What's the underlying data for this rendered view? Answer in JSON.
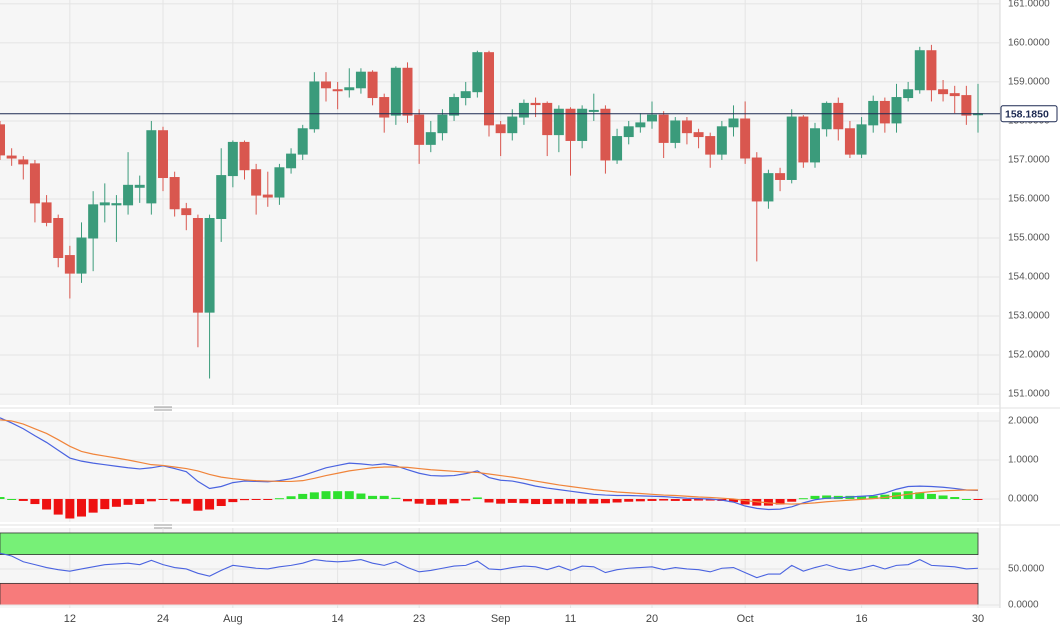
{
  "chart_data": [
    {
      "type": "candlestick",
      "categories": [
        null,
        null,
        null,
        null,
        null,
        null,
        "12",
        null,
        null,
        null,
        null,
        null,
        null,
        null,
        "24",
        null,
        null,
        null,
        null,
        null,
        "Aug",
        null,
        null,
        null,
        null,
        null,
        null,
        null,
        null,
        "14",
        null,
        null,
        null,
        null,
        null,
        null,
        "23",
        null,
        null,
        null,
        null,
        null,
        null,
        "Sep",
        null,
        null,
        null,
        null,
        null,
        "11",
        null,
        null,
        null,
        null,
        null,
        null,
        "20",
        null,
        null,
        null,
        null,
        null,
        null,
        null,
        "Oct",
        null,
        null,
        null,
        null,
        null,
        null,
        null,
        null,
        null,
        "16",
        null,
        null,
        null,
        null,
        null,
        null,
        null,
        null,
        null,
        "30"
      ],
      "open": [
        157.9,
        157.1,
        157.0,
        156.9,
        155.9,
        155.5,
        154.55,
        154.1,
        155.0,
        155.85,
        155.85,
        155.85,
        156.3,
        155.9,
        157.75,
        156.55,
        155.75,
        155.5,
        153.1,
        155.5,
        156.6,
        157.45,
        156.75,
        156.1,
        156.05,
        156.8,
        157.15,
        157.8,
        159.0,
        158.8,
        158.8,
        158.85,
        159.25,
        158.6,
        158.15,
        159.35,
        158.15,
        157.4,
        157.7,
        158.15,
        158.6,
        158.75,
        159.75,
        157.9,
        157.7,
        158.1,
        158.45,
        158.45,
        157.65,
        158.3,
        157.5,
        158.25,
        158.3,
        157.0,
        157.6,
        157.85,
        158.0,
        158.15,
        157.45,
        158.0,
        157.7,
        157.6,
        157.15,
        157.85,
        158.05,
        157.05,
        155.95,
        156.65,
        156.5,
        158.1,
        156.95,
        157.8,
        158.45,
        157.8,
        157.15,
        157.9,
        158.5,
        157.95,
        158.6,
        158.8,
        159.8,
        158.8,
        158.7,
        158.65,
        158.17
      ],
      "high": [
        158.0,
        157.3,
        157.1,
        157.0,
        156.1,
        155.6,
        154.8,
        155.4,
        156.2,
        156.4,
        156.1,
        157.2,
        156.6,
        158.0,
        157.85,
        156.7,
        155.9,
        155.6,
        155.6,
        157.3,
        157.5,
        157.5,
        156.9,
        156.7,
        156.9,
        157.3,
        157.9,
        159.25,
        159.25,
        159.0,
        159.35,
        159.35,
        159.3,
        158.7,
        159.4,
        159.5,
        158.3,
        158.0,
        158.3,
        158.7,
        159.0,
        159.8,
        159.8,
        158.0,
        158.3,
        158.55,
        158.6,
        158.5,
        158.4,
        158.35,
        158.4,
        158.7,
        158.4,
        157.8,
        158.0,
        158.2,
        158.5,
        158.25,
        158.1,
        158.1,
        157.8,
        157.7,
        158.0,
        158.4,
        158.5,
        157.2,
        156.75,
        156.8,
        158.3,
        158.15,
        157.95,
        158.5,
        158.6,
        158.0,
        158.1,
        158.65,
        158.6,
        158.95,
        159.0,
        159.9,
        159.95,
        159.05,
        158.9,
        158.9,
        158.95
      ],
      "low": [
        157.0,
        156.85,
        156.5,
        155.4,
        155.3,
        154.25,
        153.45,
        153.85,
        154.15,
        155.4,
        154.9,
        155.6,
        155.9,
        155.6,
        156.2,
        155.55,
        155.2,
        152.2,
        151.4,
        154.9,
        156.3,
        156.5,
        155.6,
        155.8,
        155.85,
        156.65,
        157.0,
        157.7,
        158.5,
        158.3,
        158.6,
        158.7,
        158.4,
        157.7,
        157.9,
        157.95,
        156.9,
        157.2,
        157.5,
        158.0,
        158.4,
        158.6,
        157.6,
        157.1,
        157.5,
        157.9,
        158.1,
        157.1,
        157.2,
        156.6,
        157.3,
        158.0,
        156.65,
        156.9,
        157.4,
        157.7,
        157.8,
        157.05,
        157.3,
        157.4,
        157.3,
        156.8,
        157.0,
        157.6,
        156.9,
        154.4,
        155.75,
        156.2,
        156.4,
        156.8,
        156.8,
        157.6,
        157.5,
        157.05,
        157.05,
        157.7,
        157.7,
        157.7,
        158.5,
        158.7,
        158.5,
        158.5,
        158.2,
        157.9,
        157.7
      ],
      "close": [
        157.13,
        157.05,
        156.9,
        155.9,
        155.4,
        154.5,
        154.1,
        155.0,
        155.85,
        155.9,
        155.88,
        156.35,
        156.35,
        157.75,
        156.55,
        155.75,
        155.6,
        153.1,
        155.5,
        156.6,
        157.45,
        156.75,
        156.1,
        156.05,
        156.8,
        157.15,
        157.8,
        159.0,
        158.85,
        158.78,
        158.85,
        159.25,
        158.6,
        158.1,
        159.35,
        158.15,
        157.4,
        157.7,
        158.15,
        158.6,
        158.75,
        159.75,
        157.9,
        157.7,
        158.1,
        158.45,
        158.42,
        157.65,
        158.3,
        157.5,
        158.3,
        158.27,
        157.0,
        157.6,
        157.85,
        157.95,
        158.15,
        157.45,
        158.0,
        157.7,
        157.6,
        157.15,
        157.85,
        158.05,
        157.05,
        155.95,
        156.65,
        156.5,
        158.1,
        156.95,
        157.8,
        158.45,
        157.8,
        157.15,
        157.9,
        158.5,
        157.95,
        158.6,
        158.8,
        159.8,
        158.8,
        158.7,
        158.65,
        158.15,
        158.185
      ],
      "colors": {
        "up": "#3b9b7b",
        "down": "#d9574f"
      },
      "ylim": [
        150.72,
        161.1
      ],
      "yticks": [
        {
          "value": 161,
          "label": "161.0000"
        },
        {
          "value": 160,
          "label": "160.0000"
        },
        {
          "value": 159,
          "label": "159.0000"
        },
        {
          "value": 158,
          "label": "158.0000"
        },
        {
          "value": 157,
          "label": "157.0000"
        },
        {
          "value": 156,
          "label": "156.0000"
        },
        {
          "value": 155,
          "label": "155.0000"
        },
        {
          "value": 154,
          "label": "154.0000"
        },
        {
          "value": 153,
          "label": "153.0000"
        },
        {
          "value": 152,
          "label": "152.0000"
        },
        {
          "value": 151,
          "label": "151.0000"
        }
      ],
      "last_price": {
        "value": 158.185,
        "label": "158.1850"
      },
      "grid": true
    },
    {
      "type": "macd",
      "series": [
        {
          "color": "#4a63e0",
          "values": [
            2.08,
            1.95,
            1.8,
            1.62,
            1.45,
            1.25,
            1.05,
            0.97,
            0.92,
            0.88,
            0.84,
            0.8,
            0.77,
            0.8,
            0.85,
            0.78,
            0.7,
            0.45,
            0.27,
            0.32,
            0.42,
            0.46,
            0.45,
            0.44,
            0.47,
            0.52,
            0.6,
            0.7,
            0.8,
            0.86,
            0.92,
            0.9,
            0.87,
            0.9,
            0.85,
            0.75,
            0.66,
            0.6,
            0.59,
            0.6,
            0.65,
            0.72,
            0.55,
            0.48,
            0.46,
            0.4,
            0.33,
            0.28,
            0.24,
            0.2,
            0.16,
            0.12,
            0.1,
            0.09,
            0.09,
            0.08,
            0.07,
            0.06,
            0.04,
            0.02,
            0.01,
            0.0,
            -0.03,
            -0.08,
            -0.18,
            -0.24,
            -0.27,
            -0.26,
            -0.2,
            -0.1,
            -0.02,
            0.02,
            0.03,
            0.05,
            0.07,
            0.09,
            0.15,
            0.25,
            0.32,
            0.33,
            0.32,
            0.3,
            0.27,
            0.23,
            0.22
          ]
        },
        {
          "color": "#f0843a",
          "values": [
            2.03,
            2.0,
            1.92,
            1.8,
            1.68,
            1.52,
            1.35,
            1.22,
            1.15,
            1.1,
            1.05,
            1.0,
            0.94,
            0.88,
            0.86,
            0.82,
            0.78,
            0.72,
            0.63,
            0.56,
            0.52,
            0.49,
            0.47,
            0.46,
            0.45,
            0.45,
            0.47,
            0.53,
            0.6,
            0.66,
            0.72,
            0.76,
            0.8,
            0.82,
            0.82,
            0.81,
            0.78,
            0.75,
            0.73,
            0.71,
            0.69,
            0.68,
            0.64,
            0.6,
            0.56,
            0.51,
            0.46,
            0.41,
            0.36,
            0.32,
            0.28,
            0.24,
            0.21,
            0.18,
            0.16,
            0.14,
            0.12,
            0.1,
            0.09,
            0.07,
            0.05,
            0.04,
            0.02,
            0.0,
            -0.04,
            -0.07,
            -0.1,
            -0.12,
            -0.13,
            -0.12,
            -0.1,
            -0.07,
            -0.05,
            -0.03,
            -0.01,
            0.01,
            0.04,
            0.08,
            0.12,
            0.16,
            0.19,
            0.21,
            0.22,
            0.23,
            0.23
          ]
        }
      ],
      "histogram": {
        "colors": {
          "up": "#2ee02e",
          "down": "#ee1111"
        },
        "values": [
          0.05,
          0.0,
          -0.05,
          -0.13,
          -0.27,
          -0.4,
          -0.5,
          -0.45,
          -0.35,
          -0.26,
          -0.2,
          -0.15,
          -0.13,
          -0.06,
          -0.02,
          -0.06,
          -0.12,
          -0.3,
          -0.27,
          -0.18,
          -0.08,
          -0.03,
          -0.02,
          -0.02,
          0.02,
          0.07,
          0.13,
          0.17,
          0.2,
          0.2,
          0.2,
          0.14,
          0.08,
          0.08,
          0.03,
          -0.06,
          -0.12,
          -0.15,
          -0.14,
          -0.11,
          -0.04,
          0.04,
          -0.09,
          -0.12,
          -0.1,
          -0.11,
          -0.13,
          -0.13,
          -0.12,
          -0.12,
          -0.12,
          -0.12,
          -0.11,
          -0.09,
          -0.07,
          -0.06,
          -0.05,
          -0.04,
          -0.05,
          -0.05,
          -0.04,
          -0.04,
          -0.05,
          -0.08,
          -0.14,
          -0.17,
          -0.17,
          -0.14,
          -0.07,
          0.02,
          0.08,
          0.09,
          0.08,
          0.08,
          0.08,
          0.08,
          0.11,
          0.17,
          0.2,
          0.17,
          0.13,
          0.09,
          0.05,
          0.0,
          -0.01
        ]
      },
      "ylim": [
        -0.59,
        2.23
      ],
      "yticks": [
        {
          "value": 2,
          "label": "2.0000"
        },
        {
          "value": 1,
          "label": "1.0000"
        },
        {
          "value": 0,
          "label": "0.0000"
        }
      ],
      "grid": true
    },
    {
      "type": "rsi",
      "color": "#4a63e0",
      "values": [
        72,
        68,
        60,
        56,
        52,
        49,
        47,
        50,
        53,
        56,
        57,
        58,
        56,
        62,
        56,
        52,
        50,
        44,
        40,
        48,
        55,
        53,
        51,
        50,
        53,
        55,
        58,
        63,
        61,
        60,
        61,
        63,
        58,
        55,
        60,
        52,
        46,
        48,
        51,
        54,
        55,
        61,
        50,
        49,
        52,
        54,
        53,
        49,
        54,
        48,
        54,
        53,
        45,
        49,
        51,
        52,
        53,
        49,
        52,
        50,
        49,
        46,
        51,
        52,
        45,
        38,
        43,
        43,
        55,
        47,
        52,
        56,
        51,
        48,
        51,
        55,
        50,
        55,
        56,
        63,
        55,
        54,
        53,
        50,
        51
      ],
      "bands": [
        {
          "range": [
            70,
            100
          ],
          "color": "#77f077"
        },
        {
          "range": [
            0,
            30
          ],
          "color": "#f77b7b"
        }
      ],
      "ylim": [
        -4.2,
        106.9
      ],
      "yticks": [
        {
          "value": 50,
          "label": "50.0000"
        },
        {
          "value": 0,
          "label": "0.0000"
        }
      ],
      "grid": true
    }
  ]
}
